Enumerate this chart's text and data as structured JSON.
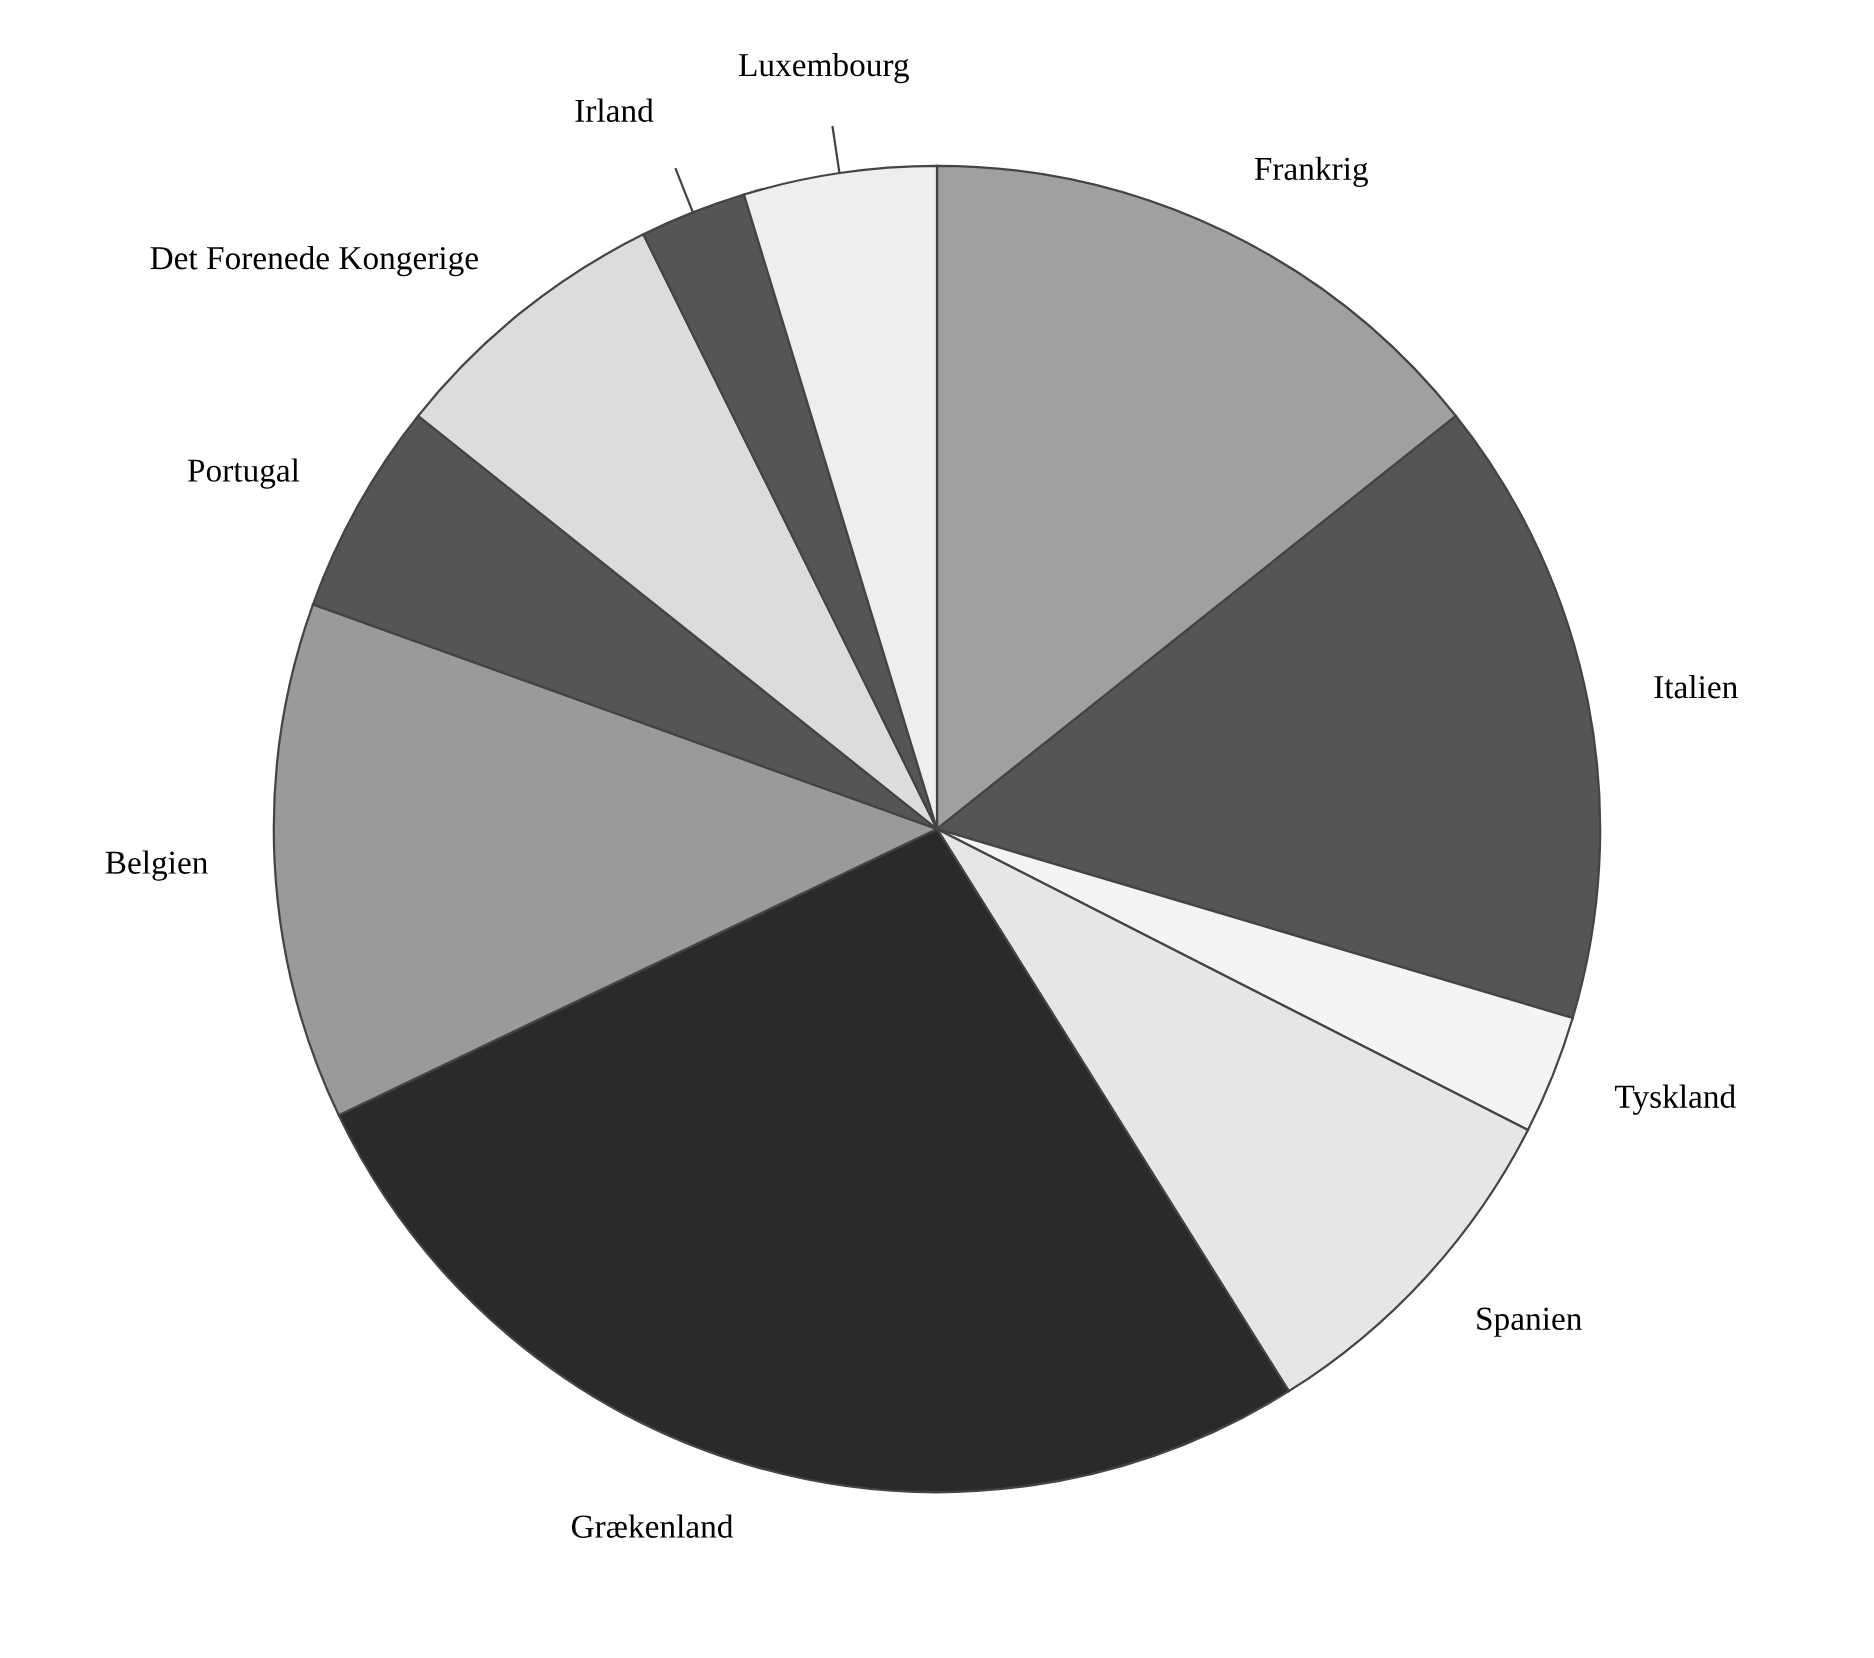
{
  "chart_data": {
    "type": "pie",
    "categories": [
      "Frankrig",
      "Italien",
      "Tyskland",
      "Spanien",
      "Grækenland",
      "Belgien",
      "Portugal",
      "Det Forenede Kongerige",
      "Irland",
      "Luxembourg"
    ],
    "values": [
      14.3,
      15.3,
      2.9,
      8.6,
      26.8,
      12.6,
      5.2,
      7.0,
      2.6,
      4.7
    ],
    "colors": [
      "#a0a0a0",
      "#555555",
      "#f4f4f4",
      "#e6e6e6",
      "#2a2a2a",
      "#9a9a9a",
      "#555555",
      "#dcdcdc",
      "#555555",
      "#eeeeee"
    ],
    "legend": false
  }
}
